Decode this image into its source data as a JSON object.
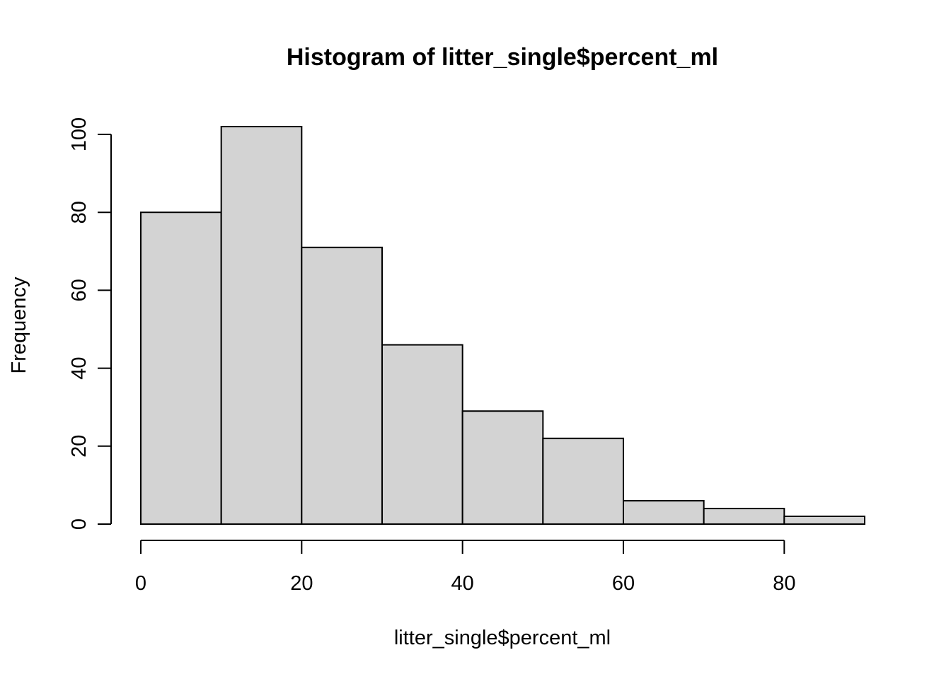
{
  "chart_data": {
    "type": "bar",
    "title": "Histogram of litter_single$percent_ml",
    "xlabel": "litter_single$percent_ml",
    "ylabel": "Frequency",
    "bins": [
      {
        "start": 0,
        "end": 10,
        "count": 80
      },
      {
        "start": 10,
        "end": 20,
        "count": 102
      },
      {
        "start": 20,
        "end": 30,
        "count": 71
      },
      {
        "start": 30,
        "end": 40,
        "count": 46
      },
      {
        "start": 40,
        "end": 50,
        "count": 29
      },
      {
        "start": 50,
        "end": 60,
        "count": 22
      },
      {
        "start": 60,
        "end": 70,
        "count": 6
      },
      {
        "start": 70,
        "end": 80,
        "count": 4
      },
      {
        "start": 80,
        "end": 90,
        "count": 2
      }
    ],
    "xticks": [
      0,
      20,
      40,
      60,
      80
    ],
    "yticks": [
      0,
      20,
      40,
      60,
      80,
      100
    ],
    "xlim": [
      0,
      90
    ],
    "ylim": [
      0,
      102
    ],
    "grid": false,
    "legend": "none",
    "colors": {
      "bar_fill": "#d3d3d3",
      "bar_stroke": "#000000",
      "background": "#ffffff"
    }
  }
}
